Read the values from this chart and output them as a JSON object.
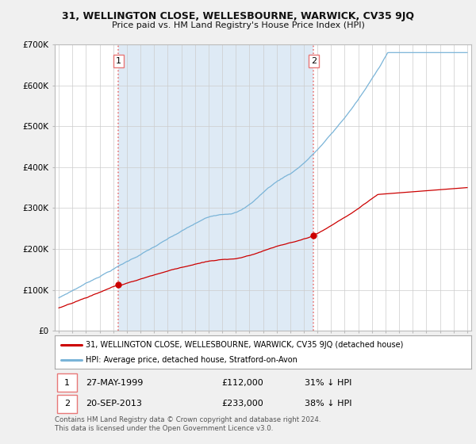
{
  "title1": "31, WELLINGTON CLOSE, WELLESBOURNE, WARWICK, CV35 9JQ",
  "title2": "Price paid vs. HM Land Registry's House Price Index (HPI)",
  "legend_line1": "31, WELLINGTON CLOSE, WELLESBOURNE, WARWICK, CV35 9JQ (detached house)",
  "legend_line2": "HPI: Average price, detached house, Stratford-on-Avon",
  "footnote": "Contains HM Land Registry data © Crown copyright and database right 2024.\nThis data is licensed under the Open Government Licence v3.0.",
  "sale1": {
    "label": "1",
    "date": "27-MAY-1999",
    "price": 112000,
    "note": "31% ↓ HPI"
  },
  "sale2": {
    "label": "2",
    "date": "20-SEP-2013",
    "price": 233000,
    "note": "38% ↓ HPI"
  },
  "sale1_x": 1999.38,
  "sale2_x": 2013.72,
  "hpi_color": "#7ab4d8",
  "hpi_shade_color": "#deeaf5",
  "price_color": "#cc0000",
  "vline_color": "#e87878",
  "background_color": "#f0f0f0",
  "plot_bg": "#ffffff",
  "ylim": [
    0,
    700000
  ],
  "xlim_start": 1994.7,
  "xlim_end": 2025.3,
  "yticks": [
    0,
    100000,
    200000,
    300000,
    400000,
    500000,
    600000,
    700000
  ],
  "ylabels": [
    "£0",
    "£100K",
    "£200K",
    "£300K",
    "£400K",
    "£500K",
    "£600K",
    "£700K"
  ]
}
